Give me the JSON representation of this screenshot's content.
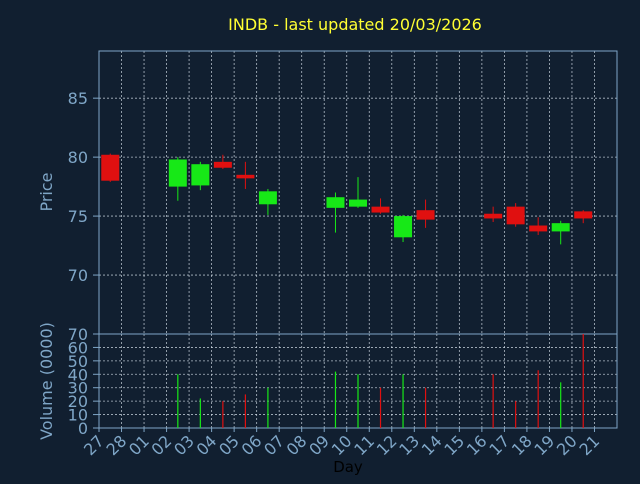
{
  "colors": {
    "background": "#111f30",
    "axis": "#7fa6c7",
    "grid": "#d8e2ec",
    "title": "#ffff33",
    "up": "#17e817",
    "down": "#e01010",
    "xlabel": "#000000"
  },
  "chart_data": [
    {
      "type": "candlestick",
      "title": "INDB - last updated 20/03/2026",
      "ylabel": "Price",
      "ylim": [
        65,
        89
      ],
      "yticks": [
        70,
        75,
        80,
        85
      ],
      "grid": true,
      "categories": [
        "27",
        "28",
        "01",
        "02",
        "03",
        "04",
        "05",
        "06",
        "07",
        "08",
        "09",
        "10",
        "11",
        "12",
        "13",
        "14",
        "15",
        "16",
        "17",
        "18",
        "19",
        "20",
        "21"
      ],
      "candles": [
        {
          "day": "27",
          "open": 80.2,
          "close": 78.0,
          "high": 80.3,
          "low": 77.9
        },
        {
          "day": "02",
          "open": 77.5,
          "close": 79.8,
          "high": 80.0,
          "low": 76.3
        },
        {
          "day": "03",
          "open": 77.6,
          "close": 79.4,
          "high": 79.6,
          "low": 77.2
        },
        {
          "day": "04",
          "open": 79.6,
          "close": 79.1,
          "high": 80.2,
          "low": 79.0
        },
        {
          "day": "05",
          "open": 78.5,
          "close": 78.2,
          "high": 79.6,
          "low": 77.3
        },
        {
          "day": "06",
          "open": 76.0,
          "close": 77.1,
          "high": 77.3,
          "low": 75.1
        },
        {
          "day": "09",
          "open": 75.7,
          "close": 76.6,
          "high": 77.0,
          "low": 73.6
        },
        {
          "day": "10",
          "open": 75.8,
          "close": 76.4,
          "high": 78.3,
          "low": 75.7
        },
        {
          "day": "11",
          "open": 75.8,
          "close": 75.3,
          "high": 76.5,
          "low": 75.2
        },
        {
          "day": "12",
          "open": 73.2,
          "close": 75.0,
          "high": 75.1,
          "low": 72.8
        },
        {
          "day": "13",
          "open": 75.5,
          "close": 74.7,
          "high": 76.4,
          "low": 74.0
        },
        {
          "day": "16",
          "open": 75.2,
          "close": 74.8,
          "high": 75.8,
          "low": 74.5
        },
        {
          "day": "17",
          "open": 75.8,
          "close": 74.3,
          "high": 76.1,
          "low": 74.1
        },
        {
          "day": "18",
          "open": 74.2,
          "close": 73.7,
          "high": 74.9,
          "low": 73.4
        },
        {
          "day": "19",
          "open": 73.7,
          "close": 74.4,
          "high": 74.6,
          "low": 72.6
        },
        {
          "day": "20",
          "open": 75.4,
          "close": 74.8,
          "high": 75.5,
          "low": 74.4
        }
      ]
    },
    {
      "type": "bar",
      "xlabel": "Day",
      "ylabel": "Volume (0000)",
      "ylim": [
        0,
        70
      ],
      "yticks": [
        0,
        10,
        20,
        30,
        40,
        50,
        60,
        70
      ],
      "grid": true,
      "categories": [
        "27",
        "28",
        "01",
        "02",
        "03",
        "04",
        "05",
        "06",
        "07",
        "08",
        "09",
        "10",
        "11",
        "12",
        "13",
        "14",
        "15",
        "16",
        "17",
        "18",
        "19",
        "20",
        "21"
      ],
      "bars": [
        {
          "day": "02",
          "value": 40,
          "direction": "up"
        },
        {
          "day": "03",
          "value": 22,
          "direction": "up"
        },
        {
          "day": "04",
          "value": 20,
          "direction": "down"
        },
        {
          "day": "05",
          "value": 25,
          "direction": "down"
        },
        {
          "day": "06",
          "value": 30,
          "direction": "up"
        },
        {
          "day": "09",
          "value": 42,
          "direction": "up"
        },
        {
          "day": "10",
          "value": 40,
          "direction": "up"
        },
        {
          "day": "11",
          "value": 30,
          "direction": "down"
        },
        {
          "day": "12",
          "value": 40,
          "direction": "up"
        },
        {
          "day": "13",
          "value": 30,
          "direction": "down"
        },
        {
          "day": "16",
          "value": 40,
          "direction": "down"
        },
        {
          "day": "17",
          "value": 20,
          "direction": "down"
        },
        {
          "day": "18",
          "value": 43,
          "direction": "down"
        },
        {
          "day": "19",
          "value": 34,
          "direction": "up"
        },
        {
          "day": "20",
          "value": 70,
          "direction": "down"
        }
      ]
    }
  ]
}
